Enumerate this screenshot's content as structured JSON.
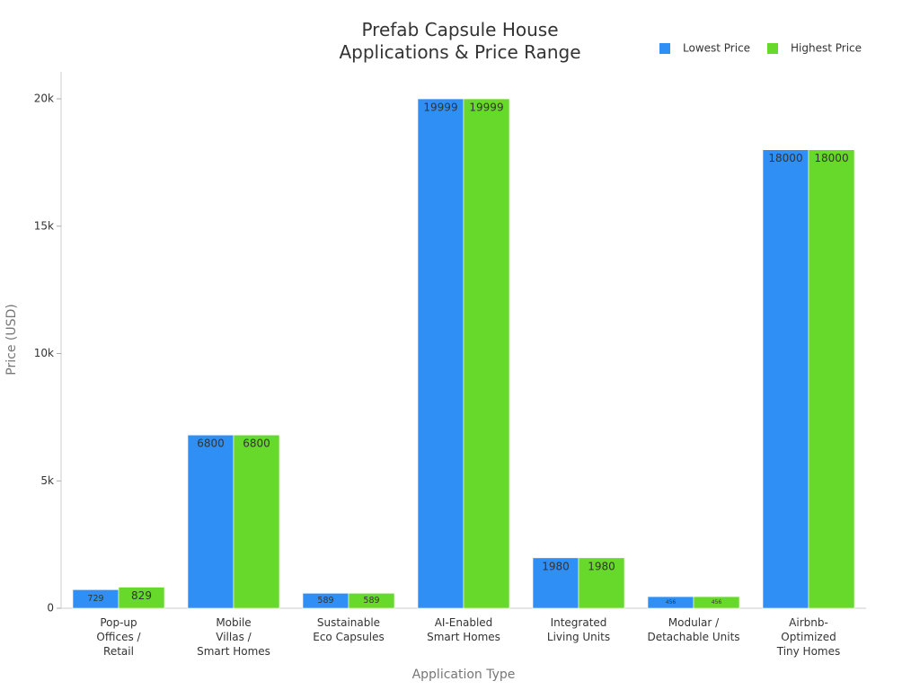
{
  "chart_data": {
    "type": "bar",
    "title": "Prefab Capsule House\nApplications & Price Range",
    "x_label": "Application Type",
    "y_label": "Price (USD)",
    "categories": [
      "Pop-up\nOffices /\nRetail",
      "Mobile\nVillas /\nSmart Homes",
      "Sustainable\nEco Capsules",
      "AI-Enabled\nSmart Homes",
      "Integrated\nLiving Units",
      "Modular /\nDetachable Units",
      "Airbnb-\nOptimized\nTiny Homes"
    ],
    "series": [
      {
        "name": "Lowest Price",
        "color": "#2f8ff5",
        "values": [
          729,
          6800,
          589,
          19999,
          1980,
          456,
          18000
        ]
      },
      {
        "name": "Highest Price",
        "color": "#66d92a",
        "values": [
          829,
          6800,
          589,
          19999,
          1980,
          456,
          18000
        ]
      }
    ],
    "ylim": [
      0,
      21000
    ],
    "yticks": [
      0,
      {
        "value": 5000,
        "label": "5k"
      },
      {
        "value": 10000,
        "label": "10k"
      },
      {
        "value": 15000,
        "label": "15k"
      },
      {
        "value": 20000,
        "label": "20k"
      }
    ],
    "legend": "top-right"
  }
}
